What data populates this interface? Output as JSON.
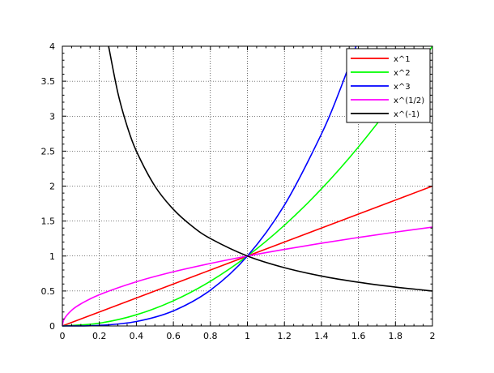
{
  "chart_data": {
    "type": "line",
    "title": "",
    "xlabel": "",
    "ylabel": "",
    "xlim": [
      0,
      2
    ],
    "ylim": [
      0,
      4
    ],
    "x_ticks": [
      "0",
      "0.2",
      "0.4",
      "0.6",
      "0.8",
      "1",
      "1.2",
      "1.4",
      "1.6",
      "1.8",
      "2"
    ],
    "y_ticks": [
      "0",
      "0.5",
      "1",
      "1.5",
      "2",
      "2.5",
      "3",
      "3.5",
      "4"
    ],
    "grid": true,
    "legend_position": "top-right",
    "series": [
      {
        "name": "x^1",
        "color": "#ff0000",
        "x": [
          0,
          0.2,
          0.4,
          0.6,
          0.8,
          1,
          1.2,
          1.4,
          1.6,
          1.8,
          2
        ],
        "y": [
          0,
          0.2,
          0.4,
          0.6,
          0.8,
          1,
          1.2,
          1.4,
          1.6,
          1.8,
          2
        ]
      },
      {
        "name": "x^2",
        "color": "#00ff00",
        "x": [
          0,
          0.2,
          0.4,
          0.6,
          0.8,
          1,
          1.2,
          1.4,
          1.6,
          1.8,
          2
        ],
        "y": [
          0,
          0.04,
          0.16,
          0.36,
          0.64,
          1,
          1.44,
          1.96,
          2.56,
          3.24,
          4
        ]
      },
      {
        "name": "x^3",
        "color": "#0000ff",
        "x": [
          0,
          0.2,
          0.4,
          0.6,
          0.8,
          1,
          1.2,
          1.4,
          1.5,
          1.587
        ],
        "y": [
          0,
          0.008,
          0.064,
          0.216,
          0.512,
          1,
          1.728,
          2.744,
          3.375,
          4
        ]
      },
      {
        "name": "x^(1/2)",
        "color": "#ff00ff",
        "x": [
          0,
          0.01,
          0.05,
          0.1,
          0.2,
          0.4,
          0.6,
          0.8,
          1,
          1.2,
          1.4,
          1.6,
          1.8,
          2
        ],
        "y": [
          0,
          0.1,
          0.224,
          0.316,
          0.447,
          0.632,
          0.775,
          0.894,
          1,
          1.095,
          1.183,
          1.265,
          1.342,
          1.414
        ]
      },
      {
        "name": "x^(-1)",
        "color": "#000000",
        "x": [
          0.25,
          0.3,
          0.35,
          0.4,
          0.5,
          0.6,
          0.7,
          0.8,
          1,
          1.2,
          1.4,
          1.6,
          1.8,
          2
        ],
        "y": [
          4,
          3.333,
          2.857,
          2.5,
          2,
          1.667,
          1.429,
          1.25,
          1,
          0.833,
          0.714,
          0.625,
          0.556,
          0.5
        ]
      }
    ]
  }
}
